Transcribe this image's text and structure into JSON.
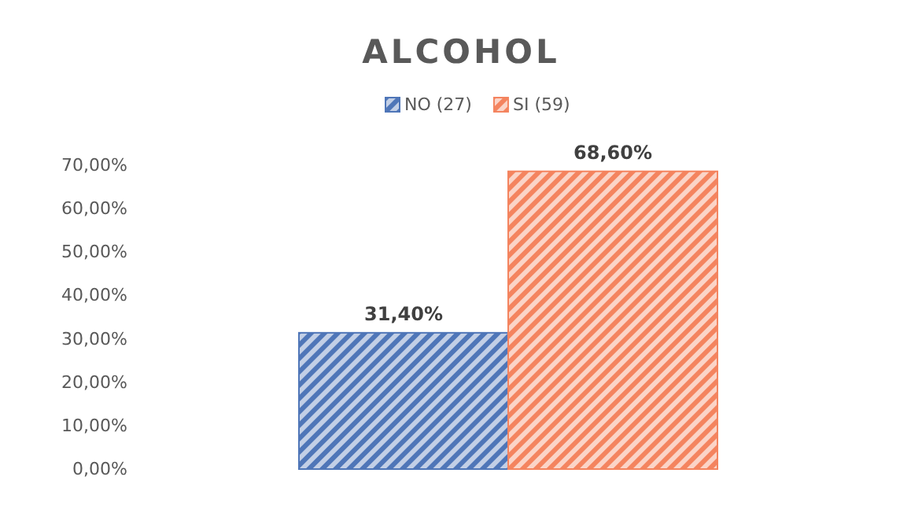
{
  "chart_data": {
    "type": "bar",
    "title": "ALCOHOL",
    "categories": [
      null
    ],
    "series": [
      {
        "name": "NO (27)",
        "color": "#4f76b8",
        "values": [
          31.4
        ],
        "value_labels": [
          "31,40%"
        ]
      },
      {
        "name": "SI (59)",
        "color": "#f4845f",
        "values": [
          68.6
        ],
        "value_labels": [
          "68,60%"
        ]
      }
    ],
    "ylim": [
      0,
      70
    ],
    "yticks": [
      {
        "value": 0,
        "label": "0,00%"
      },
      {
        "value": 10,
        "label": "10,00%"
      },
      {
        "value": 20,
        "label": "20,00%"
      },
      {
        "value": 30,
        "label": "30,00%"
      },
      {
        "value": 40,
        "label": "40,00%"
      },
      {
        "value": 50,
        "label": "50,00%"
      },
      {
        "value": 60,
        "label": "60,00%"
      },
      {
        "value": 70,
        "label": "70,00%"
      }
    ],
    "legend": "top",
    "grid": false
  }
}
